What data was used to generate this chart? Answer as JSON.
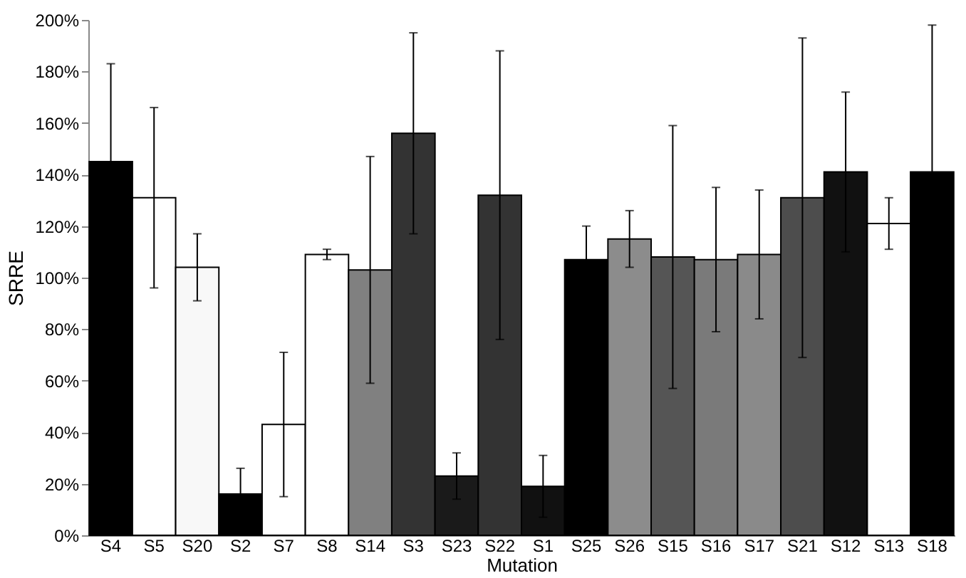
{
  "chart_data": {
    "type": "bar",
    "xlabel": "Mutation",
    "ylabel": "SRRE",
    "categories": [
      "S4",
      "S5",
      "S20",
      "S2",
      "S7",
      "S8",
      "S14",
      "S3",
      "S23",
      "S22",
      "S1",
      "S25",
      "S26",
      "S15",
      "S16",
      "S17",
      "S21",
      "S12",
      "S13",
      "S18"
    ],
    "values": [
      145,
      131,
      104,
      16,
      43,
      109,
      103,
      156,
      23,
      132,
      19,
      107,
      115,
      108,
      107,
      109,
      131,
      141,
      121,
      141
    ],
    "errors": [
      38,
      35,
      13,
      10,
      28,
      2,
      44,
      39,
      9,
      56,
      12,
      13,
      11,
      51,
      28,
      25,
      62,
      31,
      10,
      57
    ],
    "colors": [
      "#000000",
      "#ffffff",
      "#f8f8f8",
      "#000000",
      "#ffffff",
      "#ffffff",
      "#808080",
      "#333333",
      "#1a1a1a",
      "#333333",
      "#111111",
      "#000000",
      "#8c8c8c",
      "#555555",
      "#7a7a7a",
      "#8a8a8a",
      "#4d4d4d",
      "#111111",
      "#ffffff",
      "#000000"
    ],
    "ylim": [
      0,
      200
    ],
    "yticks": [
      {
        "value": 0,
        "label": "0%"
      },
      {
        "value": 20,
        "label": "20%"
      },
      {
        "value": 40,
        "label": "40%"
      },
      {
        "value": 60,
        "label": "60%"
      },
      {
        "value": 80,
        "label": "80%"
      },
      {
        "value": 100,
        "label": "100%"
      },
      {
        "value": 120,
        "label": "120%"
      },
      {
        "value": 140,
        "label": "140%"
      },
      {
        "value": 160,
        "label": "160%"
      },
      {
        "value": 180,
        "label": "180%"
      },
      {
        "value": 200,
        "label": "200%"
      }
    ],
    "grid": false,
    "legend": false
  }
}
